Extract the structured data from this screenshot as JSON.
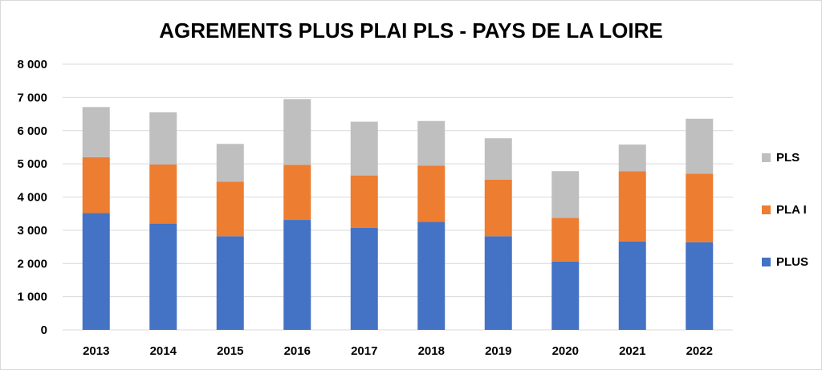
{
  "chart_data": {
    "type": "bar",
    "stacked": true,
    "title": "AGREMENTS PLUS PLAI PLS - PAYS DE LA LOIRE",
    "xlabel": "",
    "ylabel": "",
    "categories": [
      "2013",
      "2014",
      "2015",
      "2016",
      "2017",
      "2018",
      "2019",
      "2020",
      "2021",
      "2022"
    ],
    "series": [
      {
        "name": "PLUS",
        "color": "#4472C4",
        "values": [
          3520,
          3200,
          2820,
          3310,
          3070,
          3250,
          2820,
          2060,
          2660,
          2640
        ]
      },
      {
        "name": "PLA I",
        "color": "#ED7D31",
        "values": [
          1680,
          1780,
          1640,
          1660,
          1580,
          1700,
          1700,
          1310,
          2120,
          2060
        ]
      },
      {
        "name": "PLS",
        "color": "#BFBFBF",
        "values": [
          1510,
          1570,
          1140,
          1980,
          1620,
          1340,
          1250,
          1410,
          800,
          1660
        ]
      }
    ],
    "ylim": [
      0,
      8000
    ],
    "yticks": [
      0,
      1000,
      2000,
      3000,
      4000,
      5000,
      6000,
      7000,
      8000
    ],
    "ytick_labels": [
      "0",
      "1 000",
      "2 000",
      "3 000",
      "4 000",
      "5 000",
      "6 000",
      "7 000",
      "8 000"
    ],
    "grid": true,
    "legend_position": "right",
    "legend_order": [
      "PLS",
      "PLA I",
      "PLUS"
    ]
  }
}
